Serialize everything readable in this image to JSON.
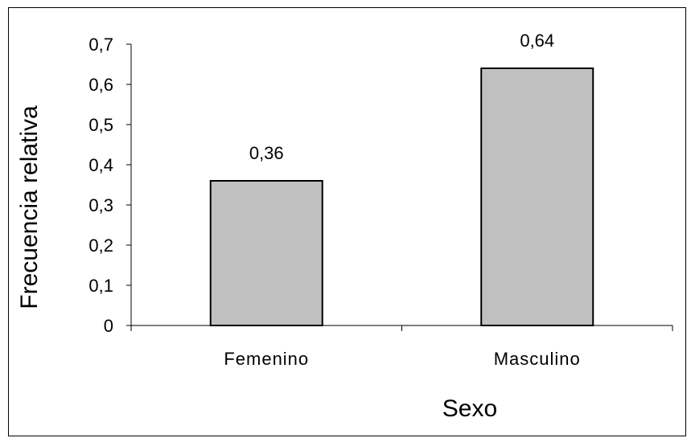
{
  "chart_data": {
    "type": "bar",
    "title": "",
    "xlabel": "Sexo",
    "ylabel": "Frecuencia relativa",
    "categories": [
      "Femenino",
      "Masculino"
    ],
    "values": [
      0.36,
      0.64
    ],
    "data_labels": [
      "0,36",
      "0,64"
    ],
    "ylim": [
      0,
      0.7
    ],
    "y_ticks": [
      0,
      0.1,
      0.2,
      0.3,
      0.4,
      0.5,
      0.6,
      0.7
    ],
    "y_tick_labels": [
      "0",
      "0,1",
      "0,2",
      "0,3",
      "0,4",
      "0,5",
      "0,6",
      "0,7"
    ],
    "grid": false,
    "legend": "none",
    "colors": {
      "bar_fill": "#c0c0c0",
      "bar_stroke": "#000000",
      "axis": "#000000",
      "frame": "#000000",
      "background": "#ffffff"
    }
  }
}
